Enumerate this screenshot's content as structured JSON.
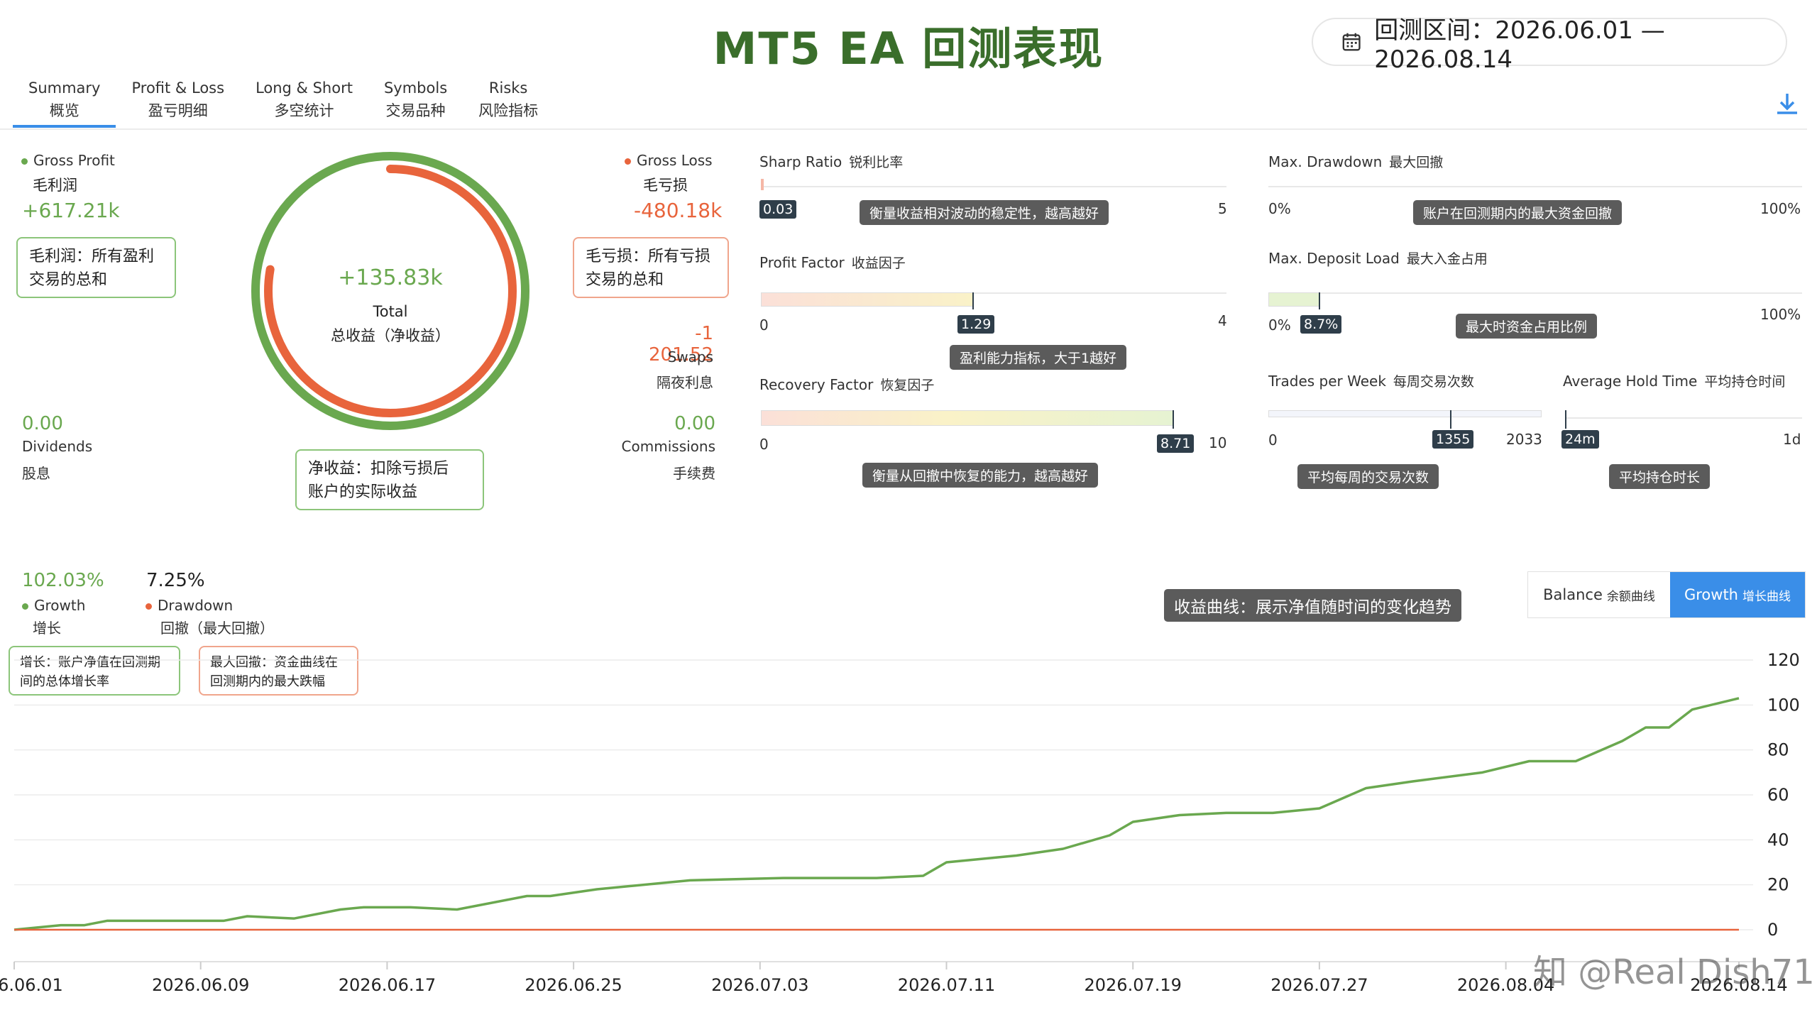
{
  "header": {
    "title": "MT5 EA 回测表现",
    "date_range": "回测区间：2026.06.01 — 2026.08.14"
  },
  "tabs": [
    {
      "en": "Summary",
      "cn": "概览"
    },
    {
      "en": "Profit & Loss",
      "cn": "盈亏明细"
    },
    {
      "en": "Long & Short",
      "cn": "多空统计"
    },
    {
      "en": "Symbols",
      "cn": "交易品种"
    },
    {
      "en": "Risks",
      "cn": "风险指标"
    }
  ],
  "summary": {
    "gross_profit": {
      "en": "Gross Profit",
      "cn": "毛利润",
      "value": "+617.21k",
      "callout": [
        "毛利润：所有盈利",
        "交易的总和"
      ]
    },
    "gross_loss": {
      "en": "Gross Loss",
      "cn": "毛亏损",
      "value": "-480.18k",
      "callout": [
        "毛亏损：所有亏损",
        "交易的总和"
      ]
    },
    "total": {
      "value": "+135.83k",
      "en": "Total",
      "cn": "总收益（净收益）",
      "callout": [
        "净收益：扣除亏损后",
        "账户的实际收益"
      ]
    },
    "swaps": {
      "value": "-1 201.52",
      "en": "Swaps",
      "cn": "隔夜利息"
    },
    "dividends": {
      "value": "0.00",
      "en": "Dividends",
      "cn": "股息"
    },
    "commissions": {
      "value": "0.00",
      "en": "Commissions",
      "cn": "手续费"
    },
    "donut": {
      "profit_share": 1.0,
      "loss_share": 0.778
    }
  },
  "metrics": {
    "sharp_ratio": {
      "en": "Sharp Ratio",
      "cn": "锐利比率",
      "value": "0.03",
      "min": "",
      "max": "5",
      "tip": "衡量收益相对波动的稳定性，越高越好",
      "fraction": 0.006
    },
    "profit_factor": {
      "en": "Profit Factor",
      "cn": "收益因子",
      "value": "1.29",
      "min": "0",
      "max": "4",
      "tip": "盈利能力指标，大于1越好",
      "fraction": 0.3225
    },
    "recovery_factor": {
      "en": "Recovery Factor",
      "cn": "恢复因子",
      "value": "8.71",
      "min": "0",
      "max": "10",
      "tip": "衡量从回撤中恢复的能力，越高越好",
      "fraction": 0.871
    },
    "max_drawdown": {
      "en": "Max. Drawdown",
      "cn": "最大回撤",
      "value": "",
      "min": "0%",
      "max": "100%",
      "tip": "账户在回测期内的最大资金回撤",
      "fraction": 0.0
    },
    "max_deposit_load": {
      "en": "Max. Deposit Load",
      "cn": "最大入金占用",
      "value": "8.7%",
      "min": "0%",
      "max": "100%",
      "tip": "最大时资金占用比例",
      "fraction": 0.087
    },
    "trades_per_week": {
      "en": "Trades per Week",
      "cn": "每周交易次数",
      "value": "1355",
      "min": "0",
      "max": "2033",
      "tip": "平均每周的交易次数",
      "fraction": 0.666
    },
    "avg_hold_time": {
      "en": "Average Hold Time",
      "cn": "平均持仓时间",
      "value": "24m",
      "min": "",
      "max": "1d",
      "tip": "平均持仓时长",
      "fraction": 0.017
    }
  },
  "growth_panel": {
    "growth": {
      "value": "102.03%",
      "en": "Growth",
      "cn": "增长",
      "callout": [
        "增长：账户净值在回测期",
        "间的总体增长率"
      ]
    },
    "drawdown": {
      "value": "7.25%",
      "en": "Drawdown",
      "cn": "回撤（最大回撤）",
      "callout": [
        "最大回撤：资金曲线在",
        "回测期内的最大跌幅"
      ]
    },
    "chart_tip": "收益曲线：展示净值随时间的变化趋势",
    "toggle": {
      "balance_en": "Balance",
      "balance_cn": "余额曲线",
      "growth_en": "Growth",
      "growth_cn": "增长曲线"
    }
  },
  "watermark": "知 @Real Dish71",
  "colors": {
    "green": "#6aa84f",
    "red": "#e8643c",
    "accent": "#3a8ee8",
    "title": "#3a6e2b"
  },
  "chart_data": {
    "type": "line",
    "title": "",
    "xlabel": "",
    "ylabel": "",
    "ylim": [
      0,
      120
    ],
    "yticks": [
      0,
      20,
      40,
      60,
      80,
      100,
      120
    ],
    "xticks": [
      "2026.06.01",
      "2026.06.09",
      "2026.06.17",
      "2026.06.25",
      "2026.07.03",
      "2026.07.11",
      "2026.07.19",
      "2026.07.27",
      "2026.08.04",
      "2026.08.14"
    ],
    "grid": true,
    "series": [
      {
        "color": "#6aa84f",
        "x": [
          "2026.06.01",
          "2026.06.03",
          "2026.06.04",
          "2026.06.05",
          "2026.06.08",
          "2026.06.10",
          "2026.06.11",
          "2026.06.13",
          "2026.06.15",
          "2026.06.16",
          "2026.06.18",
          "2026.06.20",
          "2026.06.23",
          "2026.06.24",
          "2026.06.26",
          "2026.06.30",
          "2026.07.04",
          "2026.07.06",
          "2026.07.08",
          "2026.07.10",
          "2026.07.11",
          "2026.07.13",
          "2026.07.14",
          "2026.07.16",
          "2026.07.18",
          "2026.07.19",
          "2026.07.21",
          "2026.07.23",
          "2026.07.25",
          "2026.07.27",
          "2026.07.29",
          "2026.07.31",
          "2026.08.03",
          "2026.08.05",
          "2026.08.07",
          "2026.08.09",
          "2026.08.10",
          "2026.08.11",
          "2026.08.12",
          "2026.08.14"
        ],
        "y": [
          0,
          2,
          2,
          4,
          4,
          4,
          6,
          5,
          9,
          10,
          10,
          9,
          15,
          15,
          18,
          22,
          23,
          23,
          23,
          24,
          30,
          32,
          33,
          36,
          42,
          48,
          51,
          52,
          52,
          54,
          63,
          66,
          70,
          75,
          75,
          84,
          90,
          90,
          98,
          103
        ]
      },
      {
        "color": "#e8643c",
        "x": [
          "2026.06.01",
          "2026.08.14"
        ],
        "y": [
          0,
          0
        ]
      }
    ]
  }
}
